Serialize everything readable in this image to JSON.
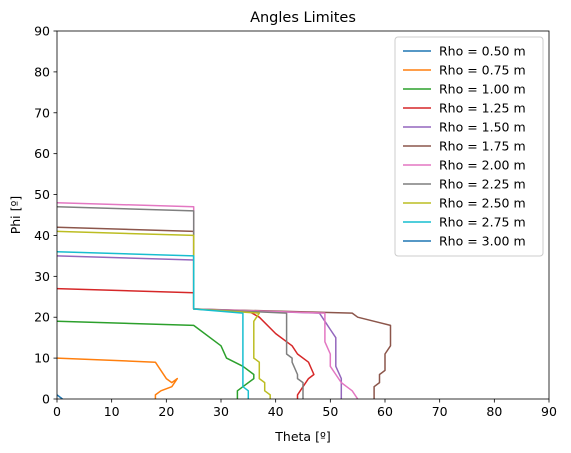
{
  "chart_data": {
    "type": "line",
    "title": "Angles Limites",
    "xlabel": "Theta [º]",
    "ylabel": "Phi [º]",
    "xlim": [
      0,
      90
    ],
    "ylim": [
      0,
      90
    ],
    "xticks": [
      "0",
      "10",
      "20",
      "30",
      "40",
      "50",
      "60",
      "70",
      "80",
      "90"
    ],
    "yticks": [
      "0",
      "10",
      "20",
      "30",
      "40",
      "50",
      "60",
      "70",
      "80",
      "90"
    ],
    "grid": false,
    "legend_position": "top-right",
    "series": [
      {
        "name": "Rho = 0.50 m",
        "color": "#1f77b4",
        "points": [
          [
            0,
            1
          ],
          [
            1,
            0
          ]
        ]
      },
      {
        "name": "Rho = 0.75 m",
        "color": "#ff7f0e",
        "points": [
          [
            0,
            10
          ],
          [
            18,
            9
          ],
          [
            20,
            5
          ],
          [
            21,
            4
          ],
          [
            22,
            5
          ],
          [
            21,
            3
          ],
          [
            19,
            2
          ],
          [
            18,
            1
          ],
          [
            18,
            0
          ]
        ]
      },
      {
        "name": "Rho = 1.00 m",
        "color": "#2ca02c",
        "points": [
          [
            0,
            19
          ],
          [
            25,
            18
          ],
          [
            30,
            13
          ],
          [
            31,
            10
          ],
          [
            34,
            8
          ],
          [
            36,
            6
          ],
          [
            36,
            5
          ],
          [
            34,
            3
          ],
          [
            33,
            2
          ],
          [
            33,
            0
          ]
        ]
      },
      {
        "name": "Rho = 1.25 m",
        "color": "#d62728",
        "points": [
          [
            0,
            27
          ],
          [
            25,
            26
          ],
          [
            25,
            22
          ],
          [
            35,
            21.5
          ],
          [
            37,
            20
          ],
          [
            40,
            16
          ],
          [
            43,
            13
          ],
          [
            44,
            11
          ],
          [
            46,
            9
          ],
          [
            47,
            6
          ],
          [
            46,
            5
          ],
          [
            45,
            3
          ],
          [
            44,
            1
          ],
          [
            44,
            0
          ]
        ]
      },
      {
        "name": "Rho = 1.50 m",
        "color": "#9467bd",
        "points": [
          [
            0,
            35
          ],
          [
            25,
            34
          ],
          [
            25,
            22
          ],
          [
            48,
            21
          ],
          [
            49,
            19
          ],
          [
            50,
            17
          ],
          [
            51,
            15
          ],
          [
            51,
            8
          ],
          [
            52,
            5
          ],
          [
            52,
            0
          ]
        ]
      },
      {
        "name": "Rho = 1.75 m",
        "color": "#8c564b",
        "points": [
          [
            0,
            42
          ],
          [
            25,
            41
          ],
          [
            25,
            22
          ],
          [
            54,
            21
          ],
          [
            55,
            20
          ],
          [
            61,
            18
          ],
          [
            61,
            13
          ],
          [
            60,
            11
          ],
          [
            60,
            7
          ],
          [
            59,
            6
          ],
          [
            59,
            4
          ],
          [
            58,
            3
          ],
          [
            58,
            0
          ]
        ]
      },
      {
        "name": "Rho = 2.00 m",
        "color": "#e377c2",
        "points": [
          [
            0,
            48
          ],
          [
            25,
            47
          ],
          [
            25,
            22
          ],
          [
            49,
            21
          ],
          [
            49,
            14
          ],
          [
            50,
            11
          ],
          [
            50,
            8
          ],
          [
            51,
            6
          ],
          [
            52,
            4
          ],
          [
            53,
            3
          ],
          [
            54,
            2
          ],
          [
            55,
            0
          ]
        ]
      },
      {
        "name": "Rho = 2.25 m",
        "color": "#7f7f7f",
        "points": [
          [
            0,
            47
          ],
          [
            25,
            46
          ],
          [
            25,
            22
          ],
          [
            42,
            21
          ],
          [
            42,
            11
          ],
          [
            43,
            10
          ],
          [
            43,
            9
          ],
          [
            44,
            6
          ],
          [
            44,
            5
          ],
          [
            45,
            4
          ],
          [
            45,
            0
          ]
        ]
      },
      {
        "name": "Rho = 2.50 m",
        "color": "#bcbd22",
        "points": [
          [
            0,
            41
          ],
          [
            25,
            40
          ],
          [
            25,
            22
          ],
          [
            37,
            21
          ],
          [
            36,
            19
          ],
          [
            36,
            10
          ],
          [
            37,
            9
          ],
          [
            37,
            5
          ],
          [
            38,
            4
          ],
          [
            38,
            2
          ],
          [
            39,
            1
          ],
          [
            39,
            0
          ]
        ]
      },
      {
        "name": "Rho = 2.75 m",
        "color": "#17becf",
        "points": [
          [
            0,
            36
          ],
          [
            25,
            35
          ],
          [
            25,
            22
          ],
          [
            34,
            21
          ],
          [
            34,
            3
          ],
          [
            35,
            2
          ],
          [
            35,
            0
          ]
        ]
      },
      {
        "name": "Rho = 3.00 m",
        "color": "#1f77b4",
        "points": []
      }
    ]
  }
}
